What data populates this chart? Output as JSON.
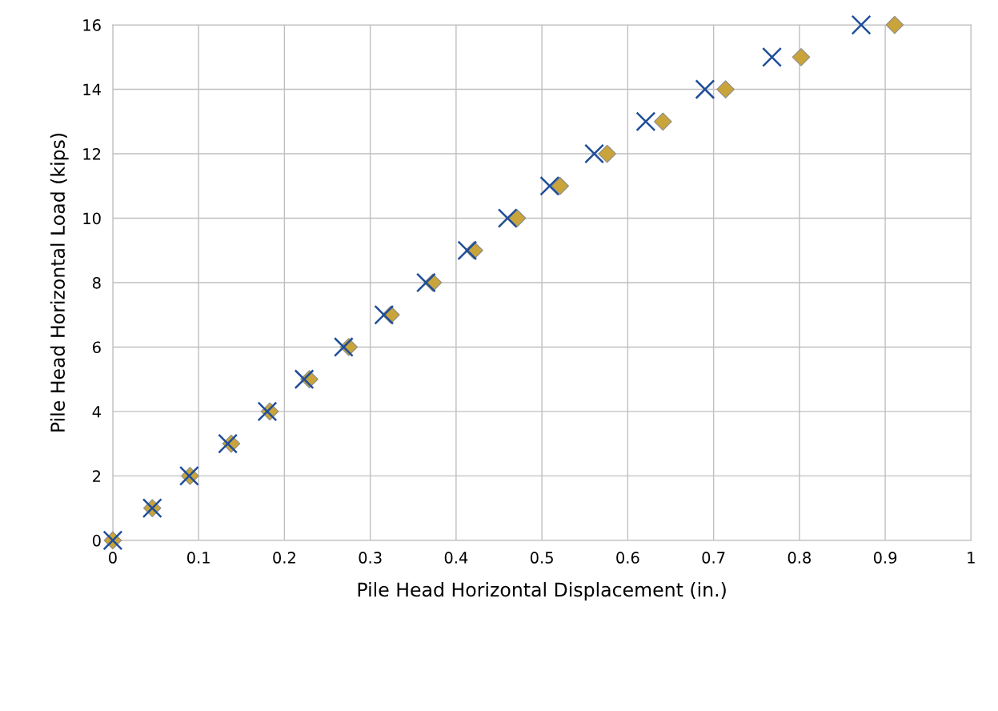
{
  "chart_data": {
    "type": "scatter",
    "xlabel": "Pile Head Horizontal Displacement (in.)",
    "ylabel": "Pile Head Horizontal Load (kips)",
    "series": [
      {
        "color": "#c9a43a",
        "marker": "diamond",
        "x": [
          0,
          0.046,
          0.09,
          0.138,
          0.183,
          0.229,
          0.275,
          0.324,
          0.373,
          0.421,
          0.471,
          0.521,
          0.576,
          0.641,
          0.714,
          0.802,
          0.911
        ],
        "values": [
          0,
          1,
          2,
          3,
          4,
          5,
          6,
          7,
          8,
          9,
          10,
          11,
          12,
          13,
          14,
          15,
          16
        ]
      },
      {
        "color": "#1f4e99",
        "marker": "cross",
        "x": [
          0,
          0.046,
          0.089,
          0.134,
          0.18,
          0.223,
          0.269,
          0.316,
          0.365,
          0.413,
          0.46,
          0.509,
          0.561,
          0.621,
          0.69,
          0.768,
          0.872
        ],
        "values": [
          0,
          1,
          2,
          3,
          4,
          5,
          6,
          7,
          8,
          9,
          10,
          11,
          12,
          13,
          14,
          15,
          16
        ]
      }
    ],
    "xlim": [
      0,
      1
    ],
    "xticks": [
      0,
      0.1,
      0.2,
      0.3,
      0.4,
      0.5,
      0.6,
      0.7,
      0.8,
      0.9,
      1
    ],
    "ylim": [
      0,
      16
    ],
    "yticks": [
      0,
      2,
      4,
      6,
      8,
      10,
      12,
      14,
      16
    ],
    "grid": true
  }
}
